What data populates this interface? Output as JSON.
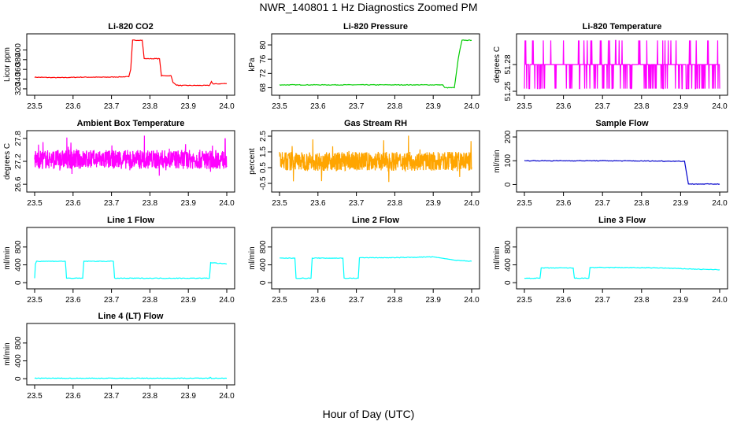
{
  "page": {
    "title": "NWR_140801  1 Hz Diagnostics Zoomed PM",
    "xlabel": "Hour of Day (UTC)"
  },
  "chart_data": [
    {
      "id": "co2",
      "type": "line",
      "title": "Li-820 CO2",
      "ylabel": "Licor ppm",
      "color": "#ff0000",
      "xlim": [
        23.5,
        24.0
      ],
      "ylim": [
        315,
        425
      ],
      "xticks": [
        23.5,
        23.6,
        23.7,
        23.8,
        23.9,
        24.0
      ],
      "xtick_labels": [
        "23.5",
        "23.6",
        "23.7",
        "23.8",
        "23.9",
        "24.0"
      ],
      "yticks": [
        320,
        340,
        360,
        380,
        400
      ],
      "ytick_labels": [
        "320",
        "340",
        "360",
        "380",
        "400"
      ],
      "x": [
        23.5,
        23.56,
        23.62,
        23.68,
        23.745,
        23.75,
        23.755,
        23.78,
        23.785,
        23.825,
        23.83,
        23.855,
        23.86,
        23.87,
        23.875,
        23.955,
        23.96,
        23.965,
        24.0
      ],
      "y": [
        344,
        343,
        344,
        344,
        345,
        360,
        420,
        420,
        382,
        382,
        347,
        347,
        333,
        328,
        327,
        327,
        335,
        330,
        331
      ]
    },
    {
      "id": "pressure",
      "type": "line",
      "title": "Li-820 Pressure",
      "ylabel": "kPa",
      "color": "#00cc00",
      "xlim": [
        23.5,
        24.0
      ],
      "ylim": [
        67,
        82
      ],
      "xticks": [
        23.5,
        23.6,
        23.7,
        23.8,
        23.9,
        24.0
      ],
      "xtick_labels": [
        "23.5",
        "23.6",
        "23.7",
        "23.8",
        "23.9",
        "24.0"
      ],
      "yticks": [
        68,
        72,
        76,
        80
      ],
      "ytick_labels": [
        "68",
        "72",
        "76",
        "80"
      ],
      "x": [
        23.5,
        23.6,
        23.7,
        23.8,
        23.9,
        23.925,
        23.93,
        23.955,
        23.96,
        23.965,
        23.97,
        23.975,
        24.0
      ],
      "y": [
        68.8,
        68.8,
        68.8,
        68.8,
        68.8,
        68.8,
        68.0,
        68.0,
        72,
        76,
        79,
        81.3,
        81.3
      ]
    },
    {
      "id": "licor-temp",
      "type": "line",
      "title": "Li-820 Temperature",
      "ylabel": "degrees C",
      "color": "#ff00ff",
      "xlim": [
        23.5,
        24.0
      ],
      "ylim": [
        51.25,
        51.31
      ],
      "xticks": [
        23.5,
        23.6,
        23.7,
        23.8,
        23.9,
        24.0
      ],
      "xtick_labels": [
        "23.5",
        "23.6",
        "23.7",
        "23.8",
        "23.9",
        "24.0"
      ],
      "yticks": [
        51.25,
        51.28
      ],
      "ytick_labels": [
        "51.25",
        "51.28"
      ],
      "baseline": 51.28,
      "spikes_high": 51.307,
      "spikes_low": 51.253
    },
    {
      "id": "box-temp",
      "type": "line",
      "title": "Ambient Box Temperature",
      "ylabel": "degrees C",
      "color": "#ff00ff",
      "xlim": [
        23.5,
        24.0
      ],
      "ylim": [
        26.5,
        27.9
      ],
      "xticks": [
        23.5,
        23.6,
        23.7,
        23.8,
        23.9,
        24.0
      ],
      "xtick_labels": [
        "23.5",
        "23.6",
        "23.7",
        "23.8",
        "23.9",
        "24.0"
      ],
      "yticks": [
        26.6,
        27.2,
        27.8
      ],
      "ytick_labels": [
        "26.6",
        "27.2",
        "27.8"
      ],
      "mean": 27.25,
      "spread": 0.25
    },
    {
      "id": "rh",
      "type": "line",
      "title": "Gas Stream RH",
      "ylabel": "percent",
      "color": "#ffa500",
      "xlim": [
        23.5,
        24.0
      ],
      "ylim": [
        -0.8,
        2.6
      ],
      "xticks": [
        23.5,
        23.6,
        23.7,
        23.8,
        23.9,
        24.0
      ],
      "xtick_labels": [
        "23.5",
        "23.6",
        "23.7",
        "23.8",
        "23.9",
        "24.0"
      ],
      "yticks": [
        -0.5,
        0.5,
        1.5,
        2.5
      ],
      "ytick_labels": [
        "-0.5",
        "0.5",
        "1.5",
        "2.5"
      ],
      "mean": 0.9,
      "spread": 0.6
    },
    {
      "id": "sample-flow",
      "type": "line",
      "title": "Sample Flow",
      "ylabel": "ml/min",
      "color": "#0000cc",
      "xlim": [
        23.5,
        24.0
      ],
      "ylim": [
        -15,
        210
      ],
      "xticks": [
        23.5,
        23.6,
        23.7,
        23.8,
        23.9,
        24.0
      ],
      "xtick_labels": [
        "23.5",
        "23.6",
        "23.7",
        "23.8",
        "23.9",
        "24.0"
      ],
      "yticks": [
        0,
        100,
        200
      ],
      "ytick_labels": [
        "0",
        "100",
        "200"
      ],
      "x": [
        23.5,
        23.7,
        23.91,
        23.915,
        23.92,
        24.0
      ],
      "y": [
        100,
        100,
        98,
        50,
        2,
        2
      ]
    },
    {
      "id": "line1-flow",
      "type": "line",
      "title": "Line 1 Flow",
      "ylabel": "ml/min",
      "color": "#00ffff",
      "xlim": [
        23.5,
        24.0
      ],
      "ylim": [
        -50,
        1150
      ],
      "xticks": [
        23.5,
        23.6,
        23.7,
        23.8,
        23.9,
        24.0
      ],
      "xtick_labels": [
        "23.5",
        "23.6",
        "23.7",
        "23.8",
        "23.9",
        "24.0"
      ],
      "yticks": [
        0,
        400,
        800
      ],
      "ytick_labels": [
        "0",
        "400",
        "800"
      ],
      "x": [
        23.5,
        23.502,
        23.505,
        23.58,
        23.583,
        23.625,
        23.628,
        23.705,
        23.708,
        23.955,
        23.958,
        24.0
      ],
      "y": [
        100,
        420,
        480,
        480,
        100,
        100,
        480,
        480,
        100,
        100,
        450,
        420
      ]
    },
    {
      "id": "line2-flow",
      "type": "line",
      "title": "Line 2 Flow",
      "ylabel": "ml/min",
      "color": "#00ffff",
      "xlim": [
        23.5,
        24.0
      ],
      "ylim": [
        -50,
        1150
      ],
      "xticks": [
        23.5,
        23.6,
        23.7,
        23.8,
        23.9,
        24.0
      ],
      "xtick_labels": [
        "23.5",
        "23.6",
        "23.7",
        "23.8",
        "23.9",
        "24.0"
      ],
      "yticks": [
        0,
        400,
        800
      ],
      "ytick_labels": [
        "0",
        "400",
        "800"
      ],
      "x": [
        23.5,
        23.54,
        23.543,
        23.582,
        23.585,
        23.665,
        23.668,
        23.705,
        23.708,
        23.8,
        23.9,
        23.96,
        24.0
      ],
      "y": [
        550,
        550,
        100,
        100,
        550,
        550,
        100,
        100,
        560,
        560,
        580,
        500,
        480
      ]
    },
    {
      "id": "line3-flow",
      "type": "line",
      "title": "Line 3 Flow",
      "ylabel": "ml/min",
      "color": "#00ffff",
      "xlim": [
        23.5,
        24.0
      ],
      "ylim": [
        -50,
        1150
      ],
      "xticks": [
        23.5,
        23.6,
        23.7,
        23.8,
        23.9,
        24.0
      ],
      "xtick_labels": [
        "23.5",
        "23.6",
        "23.7",
        "23.8",
        "23.9",
        "24.0"
      ],
      "yticks": [
        0,
        400,
        800
      ],
      "ytick_labels": [
        "0",
        "400",
        "800"
      ],
      "x": [
        23.5,
        23.54,
        23.543,
        23.585,
        23.625,
        23.628,
        23.665,
        23.668,
        23.75,
        23.85,
        23.95,
        24.0
      ],
      "y": [
        100,
        100,
        330,
        330,
        330,
        100,
        100,
        340,
        340,
        330,
        300,
        290
      ]
    },
    {
      "id": "line4-flow",
      "type": "line",
      "title": "Line 4 (LT) Flow",
      "ylabel": "ml/min",
      "color": "#00ffff",
      "xlim": [
        23.5,
        24.0
      ],
      "ylim": [
        -50,
        1150
      ],
      "xticks": [
        23.5,
        23.6,
        23.7,
        23.8,
        23.9,
        24.0
      ],
      "xtick_labels": [
        "23.5",
        "23.6",
        "23.7",
        "23.8",
        "23.9",
        "24.0"
      ],
      "yticks": [
        0,
        400,
        800
      ],
      "ytick_labels": [
        "0",
        "400",
        "800"
      ],
      "x": [
        23.5,
        23.8,
        23.955,
        23.957,
        23.96,
        24.0
      ],
      "y": [
        10,
        10,
        10,
        40,
        10,
        10
      ]
    }
  ]
}
